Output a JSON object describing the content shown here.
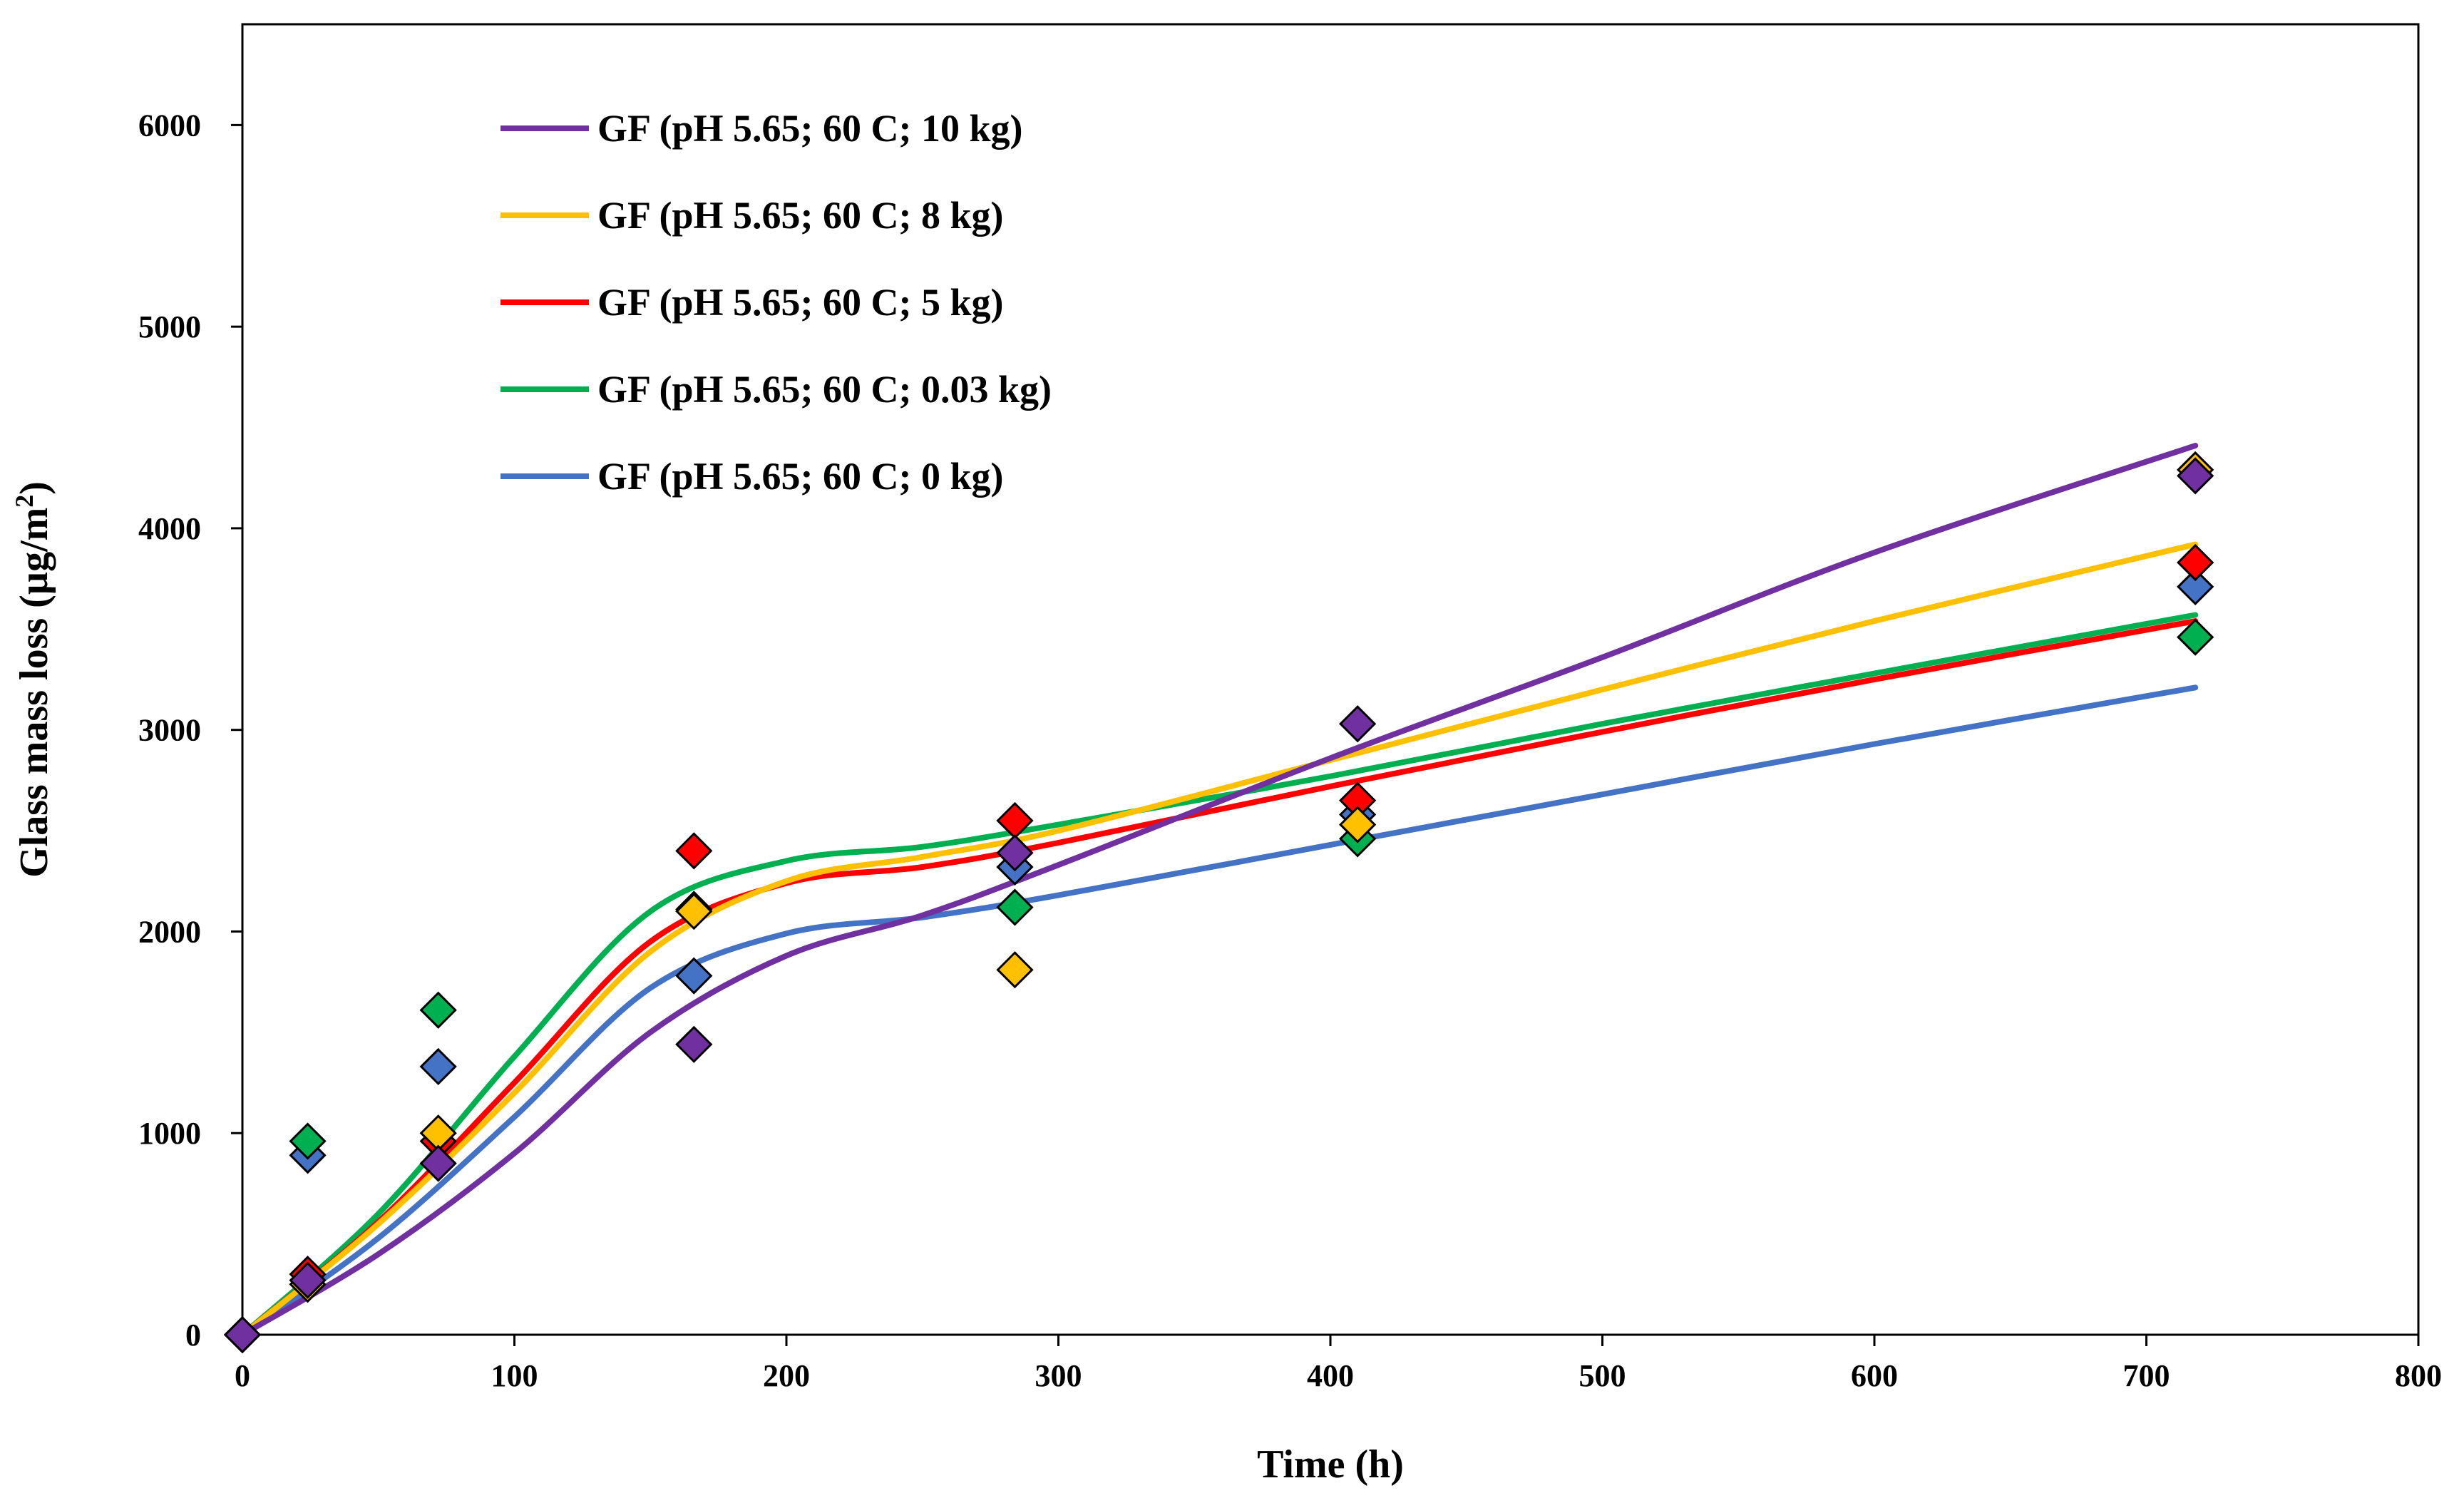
{
  "chart_data": {
    "type": "scatter",
    "title": "",
    "xlabel": "Time (h)",
    "ylabel_main": "Glass mass loss (µg/m",
    "ylabel_sup": "2",
    "ylabel_close": ")",
    "xlim": [
      0,
      800
    ],
    "ylim": [
      0,
      6500
    ],
    "xticks": [
      0,
      100,
      200,
      300,
      400,
      500,
      600,
      700,
      800
    ],
    "yticks": [
      0,
      1000,
      2000,
      3000,
      4000,
      5000,
      6000
    ],
    "grid": false,
    "legend_position": "top-left",
    "series": [
      {
        "name": "GF (pH 5.65; 60 C; 10 kg)",
        "color": "#7030A0",
        "points": [
          [
            0,
            0
          ],
          [
            24,
            270
          ],
          [
            72,
            850
          ],
          [
            166,
            1440
          ],
          [
            284,
            2390
          ],
          [
            410,
            3030
          ],
          [
            718,
            4260
          ]
        ],
        "fit": [
          [
            0,
            0
          ],
          [
            50,
            400
          ],
          [
            100,
            900
          ],
          [
            150,
            1500
          ],
          [
            200,
            1880
          ],
          [
            250,
            2080
          ],
          [
            300,
            2330
          ],
          [
            400,
            2860
          ],
          [
            500,
            3360
          ],
          [
            600,
            3880
          ],
          [
            718,
            4410
          ]
        ]
      },
      {
        "name": "GF (pH 5.65; 60 C; 8 kg)",
        "color": "#FFC000",
        "points": [
          [
            0,
            0
          ],
          [
            24,
            250
          ],
          [
            72,
            1000
          ],
          [
            166,
            2100
          ],
          [
            284,
            1810
          ],
          [
            410,
            2530
          ],
          [
            718,
            4290
          ]
        ],
        "fit": [
          [
            0,
            0
          ],
          [
            50,
            550
          ],
          [
            100,
            1200
          ],
          [
            150,
            1900
          ],
          [
            200,
            2250
          ],
          [
            250,
            2370
          ],
          [
            300,
            2500
          ],
          [
            400,
            2850
          ],
          [
            500,
            3200
          ],
          [
            600,
            3540
          ],
          [
            718,
            3920
          ]
        ]
      },
      {
        "name": "GF (pH 5.65; 60 C; 5 kg)",
        "color": "#FF0000",
        "points": [
          [
            0,
            0
          ],
          [
            24,
            300
          ],
          [
            72,
            960
          ],
          [
            166,
            2400
          ],
          [
            284,
            2550
          ],
          [
            410,
            2650
          ],
          [
            718,
            3830
          ]
        ],
        "fit": [
          [
            0,
            0
          ],
          [
            50,
            560
          ],
          [
            100,
            1250
          ],
          [
            150,
            1950
          ],
          [
            200,
            2240
          ],
          [
            250,
            2320
          ],
          [
            300,
            2440
          ],
          [
            400,
            2720
          ],
          [
            500,
            2990
          ],
          [
            600,
            3250
          ],
          [
            718,
            3540
          ]
        ]
      },
      {
        "name": "GF (pH 5.65; 60 C; 0.03 kg)",
        "color": "#00B050",
        "points": [
          [
            0,
            0
          ],
          [
            24,
            960
          ],
          [
            72,
            1610
          ],
          [
            166,
            2110
          ],
          [
            284,
            2120
          ],
          [
            410,
            2460
          ],
          [
            718,
            3460
          ]
        ],
        "fit": [
          [
            0,
            0
          ],
          [
            50,
            600
          ],
          [
            100,
            1380
          ],
          [
            150,
            2100
          ],
          [
            200,
            2350
          ],
          [
            250,
            2420
          ],
          [
            300,
            2530
          ],
          [
            400,
            2770
          ],
          [
            500,
            3030
          ],
          [
            600,
            3280
          ],
          [
            718,
            3570
          ]
        ]
      },
      {
        "name": "GF (pH 5.65; 60 C; 0 kg)",
        "color": "#4472C4",
        "points": [
          [
            0,
            0
          ],
          [
            24,
            890
          ],
          [
            72,
            1330
          ],
          [
            166,
            1780
          ],
          [
            284,
            2320
          ],
          [
            410,
            2580
          ],
          [
            718,
            3710
          ]
        ],
        "fit": [
          [
            0,
            0
          ],
          [
            50,
            480
          ],
          [
            100,
            1080
          ],
          [
            150,
            1720
          ],
          [
            200,
            1990
          ],
          [
            250,
            2070
          ],
          [
            300,
            2180
          ],
          [
            400,
            2430
          ],
          [
            500,
            2680
          ],
          [
            600,
            2930
          ],
          [
            718,
            3210
          ]
        ]
      }
    ]
  }
}
